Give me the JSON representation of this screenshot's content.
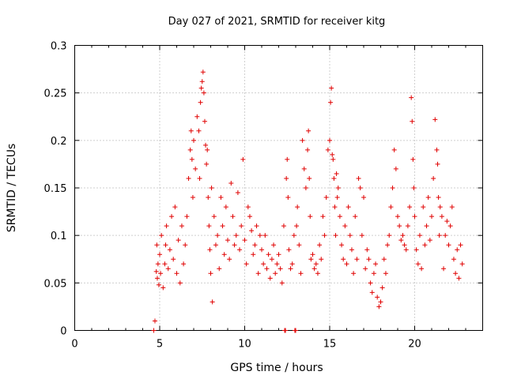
{
  "chart_data": {
    "type": "scatter",
    "title": "Day 027 of 2021, SRMTID for receiver kitg",
    "xlabel": "GPS time / hours",
    "ylabel": "SRMTID / TECUs",
    "xlim": [
      0,
      24
    ],
    "ylim": [
      0,
      0.3
    ],
    "x_ticks": [
      0,
      5,
      10,
      15,
      20
    ],
    "x_tick_labels": [
      "0",
      "5",
      "10",
      "15",
      "20"
    ],
    "y_ticks": [
      0,
      0.05,
      0.1,
      0.15,
      0.2,
      0.25,
      0.3
    ],
    "y_tick_labels": [
      "0",
      "0.05",
      "0.1",
      "0.15",
      "0.2",
      "0.25",
      "0.3"
    ],
    "grid": true,
    "marker": "plus",
    "series": [
      {
        "color": "#e00000",
        "x": [
          4.65,
          4.72,
          12.35,
          12.4,
          12.95,
          13.0,
          4.8,
          4.83,
          4.86,
          4.9,
          4.95,
          5.0,
          5.05,
          5.1,
          5.2,
          5.3,
          5.35,
          5.4,
          5.5,
          5.6,
          5.7,
          5.8,
          5.9,
          6.0,
          6.1,
          6.2,
          6.3,
          6.4,
          6.5,
          6.6,
          6.7,
          6.8,
          6.85,
          6.9,
          6.95,
          7.0,
          7.1,
          7.2,
          7.3,
          7.35,
          7.4,
          7.45,
          7.5,
          7.55,
          7.6,
          7.65,
          7.7,
          7.75,
          7.8,
          7.85,
          7.9,
          7.95,
          8.0,
          8.05,
          8.1,
          8.2,
          8.3,
          8.4,
          8.5,
          8.6,
          8.7,
          8.8,
          8.9,
          9.0,
          9.1,
          9.2,
          9.3,
          9.4,
          9.5,
          9.6,
          9.7,
          9.8,
          9.9,
          10.0,
          10.1,
          10.2,
          10.3,
          10.4,
          10.5,
          10.6,
          10.7,
          10.8,
          10.9,
          11.0,
          11.1,
          11.2,
          11.3,
          11.4,
          11.5,
          11.6,
          11.7,
          11.8,
          11.9,
          12.0,
          12.1,
          12.2,
          12.3,
          12.45,
          12.5,
          12.55,
          12.6,
          12.7,
          12.8,
          12.9,
          13.05,
          13.1,
          13.2,
          13.3,
          13.4,
          13.5,
          13.6,
          13.7,
          13.75,
          13.8,
          13.85,
          13.9,
          14.0,
          14.1,
          14.2,
          14.3,
          14.4,
          14.5,
          14.6,
          14.7,
          14.8,
          14.9,
          15.0,
          15.05,
          15.1,
          15.15,
          15.2,
          15.25,
          15.3,
          15.35,
          15.4,
          15.45,
          15.5,
          15.6,
          15.7,
          15.8,
          15.9,
          16.0,
          16.1,
          16.2,
          16.3,
          16.4,
          16.5,
          16.6,
          16.7,
          16.8,
          16.9,
          17.0,
          17.1,
          17.2,
          17.3,
          17.4,
          17.5,
          17.6,
          17.7,
          17.8,
          17.9,
          18.0,
          18.1,
          18.2,
          18.3,
          18.4,
          18.5,
          18.6,
          18.7,
          18.8,
          18.9,
          19.0,
          19.1,
          19.2,
          19.3,
          19.4,
          19.5,
          19.6,
          19.7,
          19.8,
          19.85,
          19.9,
          19.95,
          20.0,
          20.1,
          20.2,
          20.3,
          20.4,
          20.5,
          20.6,
          20.7,
          20.8,
          20.9,
          21.0,
          21.1,
          21.2,
          21.3,
          21.35,
          21.4,
          21.45,
          21.5,
          21.6,
          21.7,
          21.8,
          21.9,
          22.0,
          22.1,
          22.2,
          22.3,
          22.4,
          22.5,
          22.6,
          22.7,
          22.8
        ],
        "y": [
          0.0,
          0.01,
          0.0,
          0.0,
          0.0,
          0.0,
          0.062,
          0.09,
          0.055,
          0.07,
          0.048,
          0.08,
          0.06,
          0.1,
          0.045,
          0.07,
          0.09,
          0.11,
          0.065,
          0.085,
          0.12,
          0.075,
          0.13,
          0.06,
          0.095,
          0.05,
          0.11,
          0.07,
          0.09,
          0.12,
          0.16,
          0.19,
          0.21,
          0.18,
          0.14,
          0.2,
          0.17,
          0.225,
          0.21,
          0.16,
          0.24,
          0.255,
          0.262,
          0.272,
          0.25,
          0.22,
          0.195,
          0.175,
          0.19,
          0.14,
          0.11,
          0.085,
          0.06,
          0.15,
          0.03,
          0.12,
          0.09,
          0.1,
          0.065,
          0.14,
          0.11,
          0.08,
          0.13,
          0.095,
          0.075,
          0.155,
          0.12,
          0.09,
          0.1,
          0.145,
          0.085,
          0.11,
          0.18,
          0.095,
          0.07,
          0.13,
          0.12,
          0.105,
          0.08,
          0.09,
          0.11,
          0.06,
          0.1,
          0.085,
          0.07,
          0.1,
          0.065,
          0.08,
          0.055,
          0.075,
          0.09,
          0.06,
          0.07,
          0.08,
          0.065,
          0.05,
          0.11,
          0.16,
          0.18,
          0.14,
          0.085,
          0.065,
          0.07,
          0.1,
          0.11,
          0.13,
          0.09,
          0.06,
          0.2,
          0.17,
          0.15,
          0.19,
          0.21,
          0.16,
          0.12,
          0.075,
          0.08,
          0.065,
          0.07,
          0.06,
          0.09,
          0.075,
          0.12,
          0.1,
          0.14,
          0.19,
          0.2,
          0.24,
          0.255,
          0.185,
          0.18,
          0.16,
          0.13,
          0.1,
          0.165,
          0.14,
          0.15,
          0.12,
          0.09,
          0.075,
          0.11,
          0.07,
          0.13,
          0.1,
          0.085,
          0.06,
          0.12,
          0.075,
          0.16,
          0.15,
          0.1,
          0.14,
          0.065,
          0.085,
          0.075,
          0.05,
          0.04,
          0.06,
          0.07,
          0.035,
          0.025,
          0.03,
          0.045,
          0.075,
          0.06,
          0.09,
          0.1,
          0.13,
          0.15,
          0.19,
          0.17,
          0.12,
          0.11,
          0.095,
          0.1,
          0.09,
          0.085,
          0.11,
          0.13,
          0.245,
          0.22,
          0.18,
          0.15,
          0.12,
          0.085,
          0.07,
          0.1,
          0.065,
          0.13,
          0.09,
          0.11,
          0.14,
          0.095,
          0.12,
          0.16,
          0.222,
          0.19,
          0.175,
          0.14,
          0.1,
          0.13,
          0.12,
          0.065,
          0.1,
          0.115,
          0.09,
          0.11,
          0.13,
          0.075,
          0.06,
          0.085,
          0.055,
          0.09,
          0.07
        ]
      }
    ]
  }
}
